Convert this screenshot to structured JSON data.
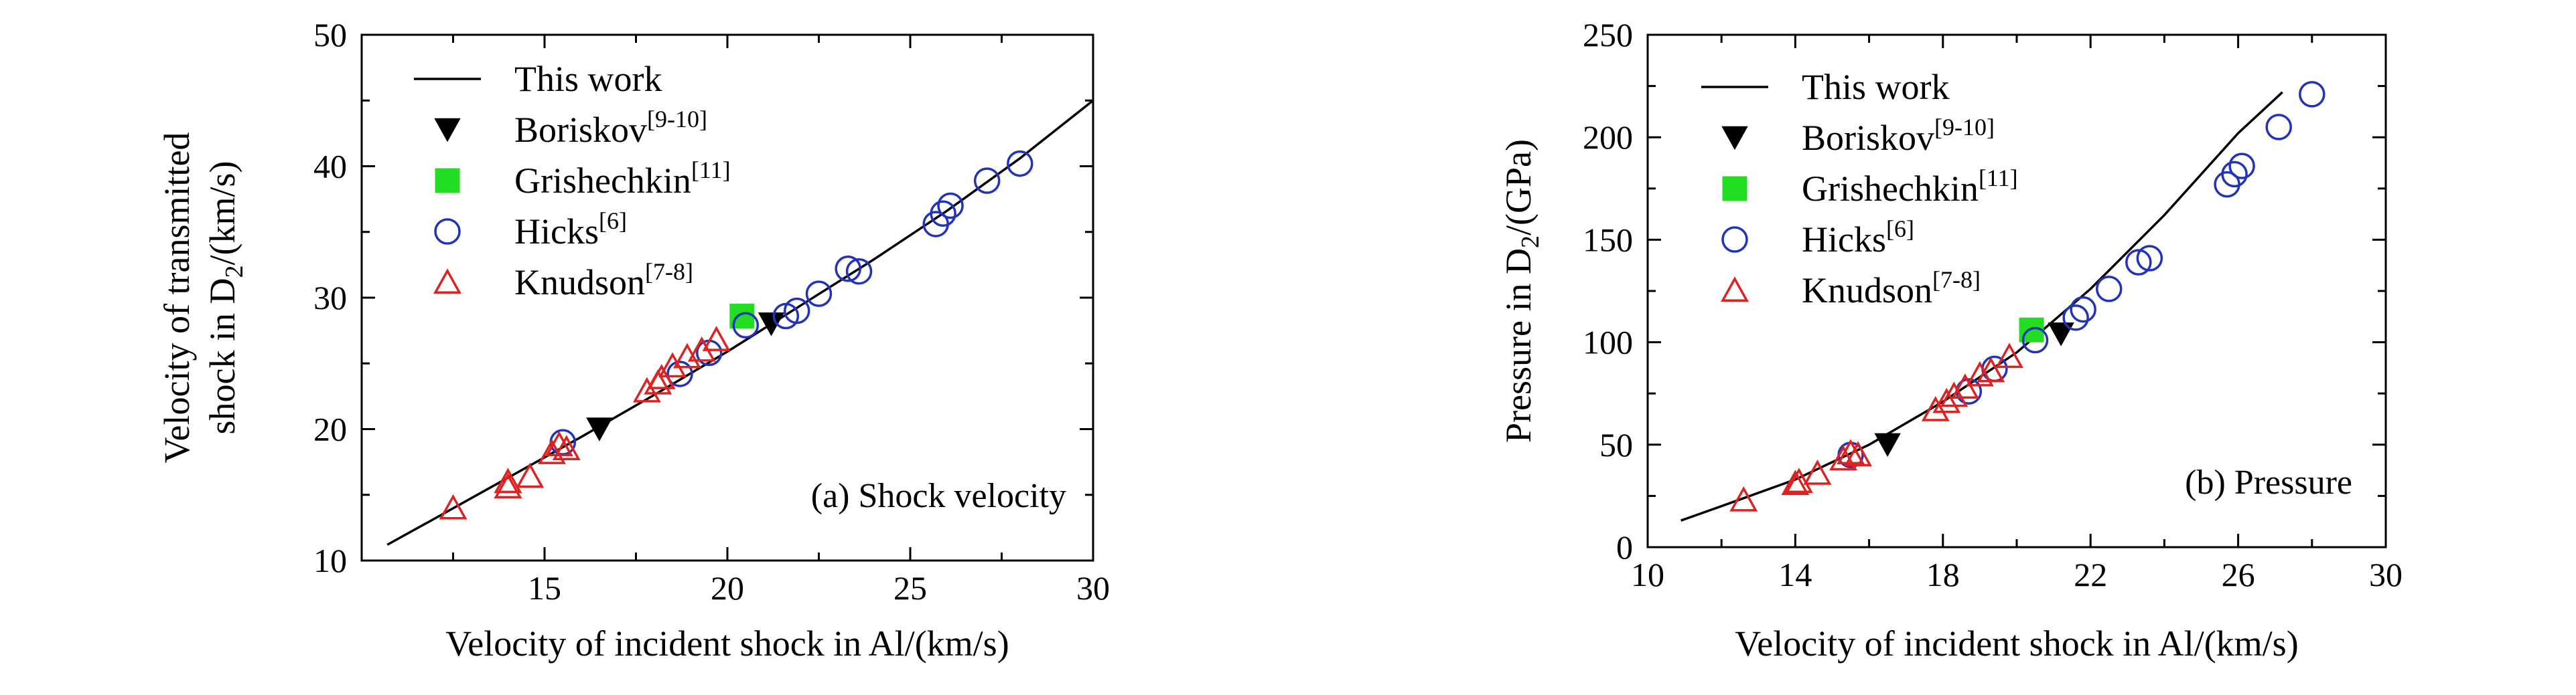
{
  "chart_data": [
    {
      "type": "scatter",
      "title": "(a) Shock velocity",
      "xlabel": "Velocity of incident shock in Al/(km/s)",
      "ylabel_line1": "Velocity of transmitted",
      "ylabel_line2_pre": "shock in D",
      "ylabel_line2_sub": "2",
      "ylabel_line2_post": "/(km/s)",
      "xlim": [
        10,
        30
      ],
      "ylim": [
        10,
        50
      ],
      "xticks": [
        "15",
        "20",
        "25",
        "30"
      ],
      "yticks": [
        "10",
        "20",
        "30",
        "40",
        "50"
      ],
      "legend_position": "top-left",
      "series": [
        {
          "name": "This work",
          "sup": "",
          "marker": "line",
          "color": "#000000",
          "x": [
            10.7,
            12,
            14,
            16,
            18,
            20,
            22,
            24,
            26,
            28,
            30
          ],
          "y": [
            11.2,
            13.2,
            16.3,
            19.4,
            22.6,
            25.9,
            29.4,
            32.9,
            36.6,
            40.6,
            45.0
          ]
        },
        {
          "name": "Boriskov",
          "sup": "[9-10]",
          "marker": "triangle-down-filled",
          "color": "#000000",
          "x": [
            16.5,
            21.2
          ],
          "y": [
            20.0,
            28.0
          ]
        },
        {
          "name": "Grishechkin",
          "sup": "[11]",
          "marker": "square-filled",
          "color": "#22dd22",
          "x": [
            20.4
          ],
          "y": [
            28.6
          ]
        },
        {
          "name": "Hicks",
          "sup": "[6]",
          "marker": "circle-open",
          "color": "#2233bb",
          "x": [
            15.5,
            18.7,
            19.5,
            20.5,
            21.6,
            21.9,
            22.5,
            23.3,
            23.6,
            25.7,
            25.9,
            26.1,
            27.1,
            28.0
          ],
          "y": [
            19.0,
            24.2,
            25.8,
            27.9,
            28.6,
            29.0,
            30.3,
            32.2,
            32.0,
            35.6,
            36.4,
            37.0,
            38.9,
            40.2
          ]
        },
        {
          "name": "Knudson",
          "sup": "[7-8]",
          "marker": "triangle-up-open",
          "color": "#dd2222",
          "x": [
            12.5,
            14.0,
            14.0,
            14.6,
            15.2,
            15.4,
            15.6,
            17.8,
            18.1,
            18.2,
            18.5,
            18.9,
            19.3,
            19.7
          ],
          "y": [
            14.0,
            15.6,
            16.0,
            16.4,
            18.2,
            18.8,
            18.5,
            22.9,
            23.5,
            23.9,
            24.8,
            25.5,
            26.0,
            26.8
          ]
        }
      ]
    },
    {
      "type": "scatter",
      "title": "(b) Pressure",
      "xlabel": "Velocity of incident shock in Al/(km/s)",
      "ylabel_line1": "",
      "ylabel_line2_pre": "Pressure in D",
      "ylabel_line2_sub": "2",
      "ylabel_line2_post": "/(GPa)",
      "xlim": [
        10,
        30
      ],
      "ylim": [
        0,
        250
      ],
      "xticks": [
        "10",
        "14",
        "18",
        "22",
        "26",
        "30"
      ],
      "yticks": [
        "0",
        "50",
        "100",
        "150",
        "200",
        "250"
      ],
      "legend_position": "top-left",
      "series": [
        {
          "name": "This work",
          "sup": "",
          "marker": "line",
          "color": "#000000",
          "x": [
            10.9,
            12,
            14,
            16,
            18,
            20,
            22,
            24,
            26,
            27.2
          ],
          "y": [
            13,
            20,
            33,
            50,
            71,
            95,
            126,
            162,
            202,
            222
          ]
        },
        {
          "name": "Boriskov",
          "sup": "[9-10]",
          "marker": "triangle-down-filled",
          "color": "#000000",
          "x": [
            16.5,
            21.2
          ],
          "y": [
            50,
            104
          ]
        },
        {
          "name": "Grishechkin",
          "sup": "[11]",
          "marker": "square-filled",
          "color": "#22dd22",
          "x": [
            20.4
          ],
          "y": [
            106
          ]
        },
        {
          "name": "Hicks",
          "sup": "[6]",
          "marker": "circle-open",
          "color": "#2233bb",
          "x": [
            15.5,
            18.7,
            19.4,
            20.5,
            21.6,
            21.8,
            22.5,
            23.3,
            23.6,
            25.7,
            25.9,
            26.1,
            27.1,
            28.0
          ],
          "y": [
            45,
            76,
            87,
            101,
            112,
            116,
            126,
            139,
            141,
            177,
            182,
            186,
            205,
            221
          ]
        },
        {
          "name": "Knudson",
          "sup": "[7-8]",
          "marker": "triangle-up-open",
          "color": "#dd2222",
          "x": [
            12.6,
            14.0,
            14.1,
            14.6,
            15.3,
            15.5,
            15.7,
            17.8,
            18.1,
            18.3,
            18.6,
            19.0,
            19.3,
            19.8
          ],
          "y": [
            23,
            31,
            32,
            36,
            43,
            46,
            45,
            67,
            71,
            74,
            78,
            84,
            86,
            93
          ]
        }
      ]
    }
  ]
}
